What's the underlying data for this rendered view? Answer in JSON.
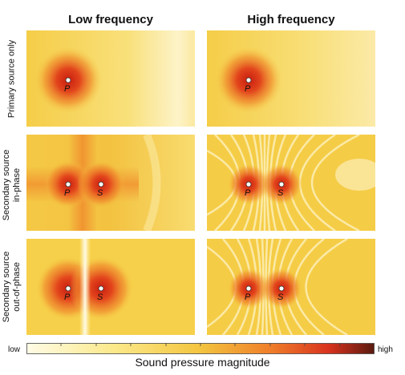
{
  "columns": [
    "Low frequency",
    "High frequency"
  ],
  "rows": [
    {
      "label_lines": [
        "Primary source only"
      ]
    },
    {
      "label_lines": [
        "Secondary source",
        "in-phase"
      ]
    },
    {
      "label_lines": [
        "Secondary source",
        "out-of-phase"
      ]
    }
  ],
  "sources": {
    "primary": "P",
    "secondary": "S"
  },
  "colorbar": {
    "low": "low",
    "high": "high",
    "title": "Sound pressure magnitude",
    "colors": [
      "#fffbe6",
      "#fbe98a",
      "#f3c43f",
      "#ef7f2a",
      "#d8321d",
      "#5a1a10"
    ]
  },
  "colors": {
    "background_field": "#f6d24a",
    "hot": "#d62a18",
    "node": "#fff6c8"
  }
}
